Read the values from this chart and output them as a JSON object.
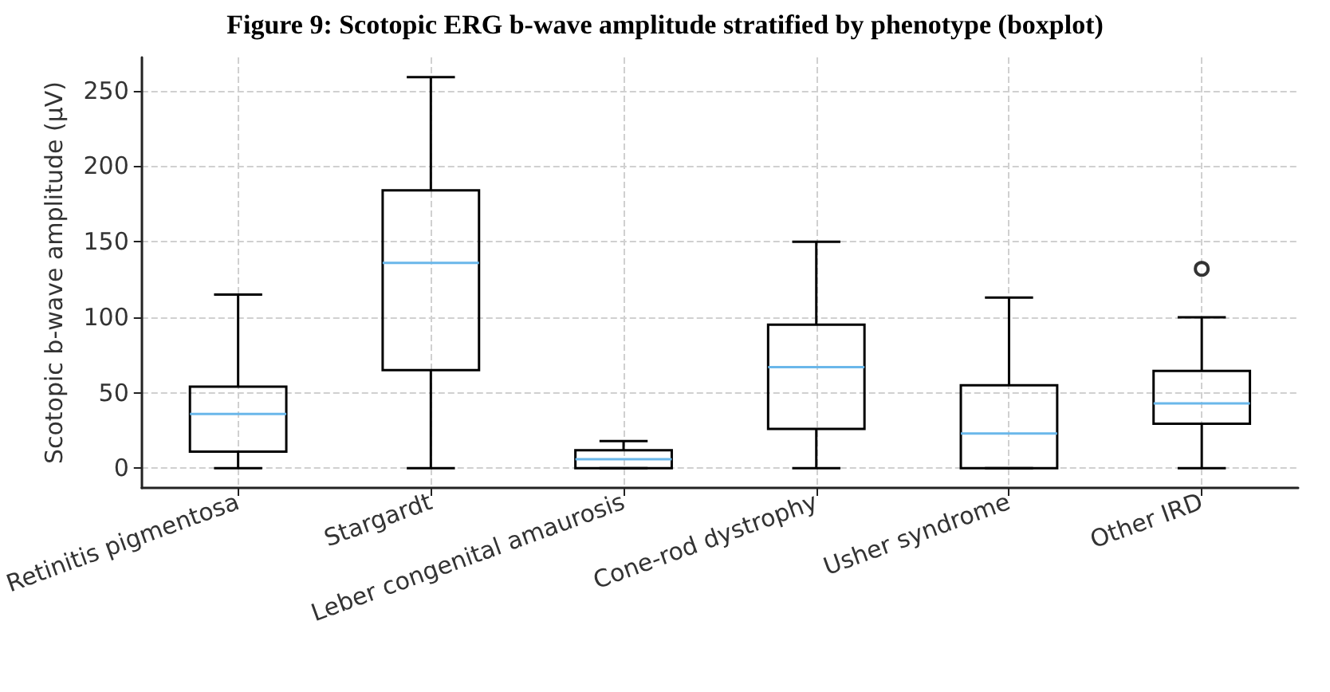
{
  "chart_data": {
    "type": "box",
    "title": "Figure 9: Scotopic ERG b-wave amplitude stratified by phenotype (boxplot)",
    "ylabel": "Scotopic b-wave amplitude (μV)",
    "categories": [
      "Retinitis pigmentosa",
      "Stargardt",
      "Leber congenital amaurosis",
      "Cone-rod dystrophy",
      "Usher syndrome",
      "Other IRD"
    ],
    "series": [
      {
        "color": "#000000",
        "boxes": [
          {
            "low": 0,
            "q1": 11,
            "median": 36,
            "q3": 54,
            "high": 115
          },
          {
            "low": 0,
            "q1": 65,
            "median": 136,
            "q3": 184,
            "high": 259
          },
          {
            "low": 0,
            "q1": 0,
            "median": 6,
            "q3": 12,
            "high": 18
          },
          {
            "low": 0,
            "q1": 26,
            "median": 67,
            "q3": 95,
            "high": 150
          },
          {
            "low": 0,
            "q1": 0,
            "median": 23,
            "q3": 55,
            "high": 113
          },
          {
            "low": 0,
            "q1": 29.5,
            "median": 43,
            "q3": 64.5,
            "high": 100,
            "outliers": [
              132
            ]
          }
        ]
      }
    ],
    "ylim": [
      -13,
      272
    ],
    "yticks": [
      0,
      50,
      100,
      150,
      200,
      250
    ],
    "grid": true
  }
}
